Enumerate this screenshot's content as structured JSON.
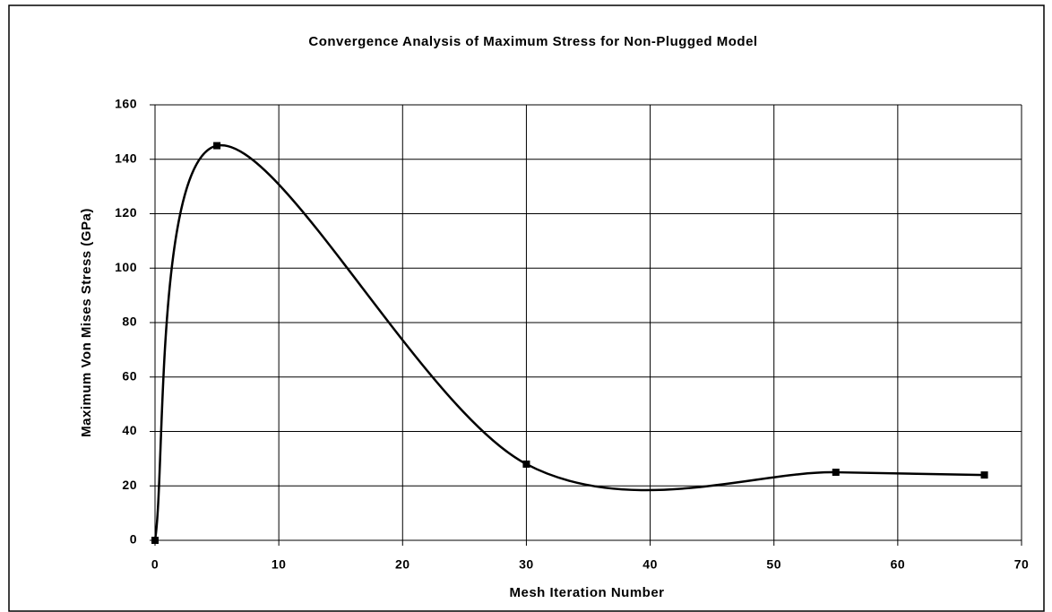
{
  "chart_data": {
    "type": "line",
    "title": "Convergence Analysis of Maximum Stress for Non-Plugged Model",
    "x_label": "Mesh Iteration Number",
    "y_label": "Maximum Von Mises Stress (GPa)",
    "x": [
      0,
      5,
      30,
      55,
      67
    ],
    "values": [
      0,
      145,
      28,
      25,
      24
    ],
    "color": "#000000",
    "smooth": true,
    "xlim": [
      0,
      70
    ],
    "xticks": [
      0,
      10,
      20,
      30,
      40,
      50,
      60,
      70
    ],
    "ylim": [
      0,
      160
    ],
    "yticks": [
      0,
      20,
      40,
      60,
      80,
      100,
      120,
      140,
      160
    ],
    "grid": true
  }
}
